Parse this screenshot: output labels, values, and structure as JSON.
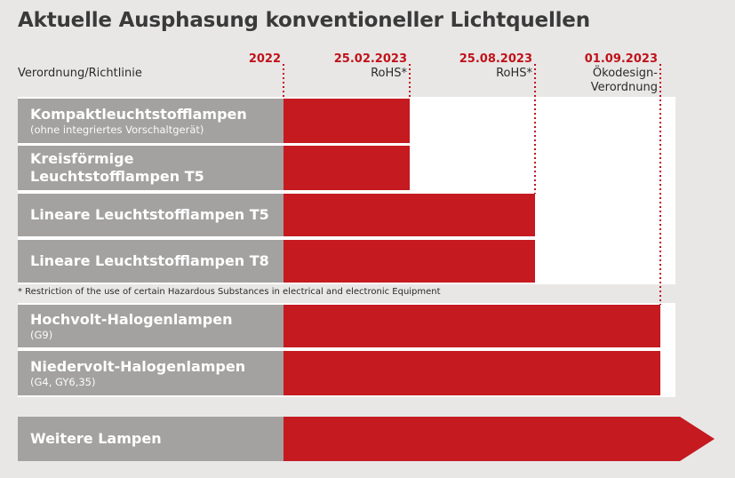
{
  "title": "Aktuelle Ausphasung konventioneller Lichtquellen",
  "column_header": "Verordnung/Richtlinie",
  "footnote": "* Restriction of the use of certain Hazardous Substances in electrical and electronic Equipment",
  "colors": {
    "bar": "#c41a20",
    "label_bg": "#a3a2a1",
    "date_text": "#c1121a",
    "background": "#e8e7e6"
  },
  "chart_data": {
    "type": "bar",
    "orientation": "horizontal",
    "title": "Aktuelle Ausphasung konventioneller Lichtquellen",
    "milestones": [
      {
        "date": "2022",
        "label": ""
      },
      {
        "date": "25.02.2023",
        "label": "RoHS*"
      },
      {
        "date": "25.08.2023",
        "label": "RoHS*"
      },
      {
        "date": "01.09.2023",
        "label": "Ökodesign-\nVerordnung"
      }
    ],
    "categories": [
      {
        "name": "Kompaktleuchtstofflampen",
        "note": "(ohne integriertes Vorschaltgerät)",
        "end": "25.02.2023"
      },
      {
        "name": "Kreisförmige\nLeuchtstofflampen T5",
        "note": "",
        "end": "25.02.2023"
      },
      {
        "name": "Lineare Leuchtstofflampen T5",
        "note": "",
        "end": "25.08.2023"
      },
      {
        "name": "Lineare Leuchtstofflampen T8",
        "note": "",
        "end": "25.08.2023"
      },
      {
        "name": "Hochvolt-Halogenlampen",
        "note": "(G9)",
        "end": "01.09.2023"
      },
      {
        "name": "Niedervolt-Halogenlampen",
        "note": "(G4, GY6,35)",
        "end": "01.09.2023"
      },
      {
        "name": "Weitere Lampen",
        "note": "",
        "end": "ongoing"
      }
    ]
  }
}
